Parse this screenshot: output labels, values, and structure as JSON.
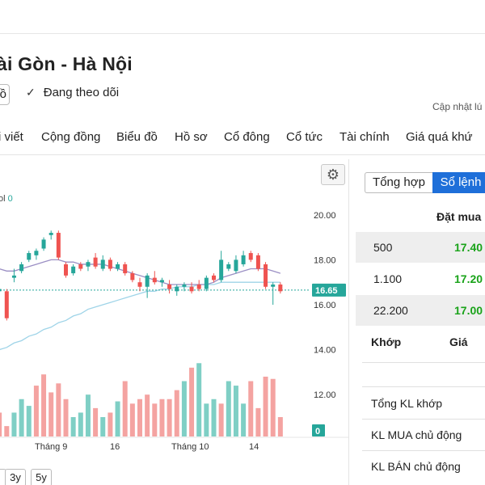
{
  "header": {
    "company_title": "ài Gòn - Hà Nội",
    "partial_button": "ồ",
    "follow_label": "Đang theo dõi",
    "update_text": "Cập nhật lú"
  },
  "nav": {
    "items": [
      "i viết",
      "Cộng đồng",
      "Biểu đồ",
      "Hồ sơ",
      "Cổ đông",
      "Cổ tức",
      "Tài chính",
      "Giá quá khứ"
    ]
  },
  "chart_panel": {
    "volume_label": "ol",
    "volume_value": "0",
    "range_buttons": [
      "3y",
      "5y"
    ],
    "range_partial": "/"
  },
  "chart_data": {
    "type": "candlestick",
    "y_ticks": [
      "20.00",
      "18.00",
      "16.00",
      "14.00",
      "12.00"
    ],
    "y_tick_values": [
      20,
      18,
      16,
      14,
      12
    ],
    "last_price_label": "16.65",
    "last_price": 16.65,
    "volume_marker_label": "0",
    "x_ticks": [
      "Tháng 9",
      "16",
      "Tháng 10",
      "14"
    ],
    "ylim": [
      11.2,
      20.6
    ],
    "colors": {
      "up": "#26a69a",
      "down": "#ef5350",
      "ma_short": "#9b8fc4",
      "ma_long": "#9fd4e8",
      "price_line": "#26a69a"
    },
    "candles": [
      {
        "o": 17.4,
        "h": 17.5,
        "l": 16.5,
        "c": 16.6
      },
      {
        "o": 16.6,
        "h": 16.8,
        "l": 16.4,
        "c": 16.7
      },
      {
        "o": 16.6,
        "h": 16.7,
        "l": 15.3,
        "c": 15.4
      },
      {
        "o": 17.2,
        "h": 17.6,
        "l": 17.0,
        "c": 17.3
      },
      {
        "o": 17.5,
        "h": 17.9,
        "l": 17.4,
        "c": 17.8
      },
      {
        "o": 18.0,
        "h": 18.4,
        "l": 17.9,
        "c": 18.3
      },
      {
        "o": 18.2,
        "h": 18.5,
        "l": 18.0,
        "c": 18.4
      },
      {
        "o": 18.5,
        "h": 19.0,
        "l": 18.4,
        "c": 18.9
      },
      {
        "o": 19.1,
        "h": 19.3,
        "l": 18.9,
        "c": 19.2
      },
      {
        "o": 19.2,
        "h": 19.3,
        "l": 18.0,
        "c": 18.1
      },
      {
        "o": 17.8,
        "h": 17.9,
        "l": 17.2,
        "c": 17.3
      },
      {
        "o": 17.4,
        "h": 17.8,
        "l": 17.3,
        "c": 17.7
      },
      {
        "o": 17.8,
        "h": 17.9,
        "l": 17.5,
        "c": 17.6
      },
      {
        "o": 17.7,
        "h": 18.0,
        "l": 17.5,
        "c": 17.9
      },
      {
        "o": 18.1,
        "h": 18.3,
        "l": 17.6,
        "c": 17.7
      },
      {
        "o": 17.6,
        "h": 18.2,
        "l": 17.5,
        "c": 18.0
      },
      {
        "o": 18.0,
        "h": 18.1,
        "l": 17.5,
        "c": 17.6
      },
      {
        "o": 17.6,
        "h": 17.9,
        "l": 17.5,
        "c": 17.8
      },
      {
        "o": 17.8,
        "h": 17.9,
        "l": 17.3,
        "c": 17.4
      },
      {
        "o": 17.4,
        "h": 17.5,
        "l": 17.0,
        "c": 17.1
      },
      {
        "o": 17.0,
        "h": 17.2,
        "l": 16.6,
        "c": 16.8
      },
      {
        "o": 16.8,
        "h": 17.4,
        "l": 16.3,
        "c": 17.3
      },
      {
        "o": 17.2,
        "h": 17.5,
        "l": 16.9,
        "c": 17.0
      },
      {
        "o": 17.0,
        "h": 17.2,
        "l": 16.8,
        "c": 17.1
      },
      {
        "o": 16.9,
        "h": 17.1,
        "l": 16.5,
        "c": 16.7
      },
      {
        "o": 16.6,
        "h": 16.9,
        "l": 16.4,
        "c": 16.8
      },
      {
        "o": 16.8,
        "h": 17.0,
        "l": 16.6,
        "c": 16.9
      },
      {
        "o": 16.8,
        "h": 17.0,
        "l": 16.5,
        "c": 16.6
      },
      {
        "o": 16.9,
        "h": 17.1,
        "l": 16.6,
        "c": 16.7
      },
      {
        "o": 16.7,
        "h": 17.3,
        "l": 16.6,
        "c": 17.2
      },
      {
        "o": 17.3,
        "h": 17.4,
        "l": 17.0,
        "c": 17.1
      },
      {
        "o": 17.1,
        "h": 18.4,
        "l": 17.0,
        "c": 18.0
      },
      {
        "o": 17.6,
        "h": 17.9,
        "l": 17.5,
        "c": 17.8
      },
      {
        "o": 17.5,
        "h": 18.2,
        "l": 17.4,
        "c": 18.0
      },
      {
        "o": 17.8,
        "h": 18.4,
        "l": 17.7,
        "c": 18.2
      },
      {
        "o": 18.3,
        "h": 18.4,
        "l": 17.9,
        "c": 18.0
      },
      {
        "o": 18.2,
        "h": 18.3,
        "l": 17.5,
        "c": 17.6
      },
      {
        "o": 17.8,
        "h": 17.9,
        "l": 16.7,
        "c": 16.8
      },
      {
        "o": 16.8,
        "h": 17.0,
        "l": 16.0,
        "c": 16.9
      },
      {
        "o": 16.9,
        "h": 17.0,
        "l": 16.5,
        "c": 16.6
      }
    ],
    "volumes": [
      {
        "v": 10.2,
        "dir": "down"
      },
      {
        "v": 11.2,
        "dir": "down"
      },
      {
        "v": 10.6,
        "dir": "down"
      },
      {
        "v": 11.2,
        "dir": "up"
      },
      {
        "v": 11.8,
        "dir": "up"
      },
      {
        "v": 11.5,
        "dir": "up"
      },
      {
        "v": 12.4,
        "dir": "down"
      },
      {
        "v": 12.9,
        "dir": "down"
      },
      {
        "v": 12.1,
        "dir": "down"
      },
      {
        "v": 12.5,
        "dir": "down"
      },
      {
        "v": 11.8,
        "dir": "down"
      },
      {
        "v": 11.0,
        "dir": "up"
      },
      {
        "v": 11.2,
        "dir": "up"
      },
      {
        "v": 12.0,
        "dir": "up"
      },
      {
        "v": 11.4,
        "dir": "down"
      },
      {
        "v": 11.0,
        "dir": "up"
      },
      {
        "v": 11.2,
        "dir": "down"
      },
      {
        "v": 11.7,
        "dir": "up"
      },
      {
        "v": 12.6,
        "dir": "down"
      },
      {
        "v": 11.6,
        "dir": "down"
      },
      {
        "v": 11.8,
        "dir": "down"
      },
      {
        "v": 12.0,
        "dir": "down"
      },
      {
        "v": 11.6,
        "dir": "down"
      },
      {
        "v": 11.8,
        "dir": "down"
      },
      {
        "v": 11.8,
        "dir": "down"
      },
      {
        "v": 12.2,
        "dir": "down"
      },
      {
        "v": 12.6,
        "dir": "up"
      },
      {
        "v": 13.2,
        "dir": "down"
      },
      {
        "v": 13.4,
        "dir": "up"
      },
      {
        "v": 11.6,
        "dir": "up"
      },
      {
        "v": 11.8,
        "dir": "up"
      },
      {
        "v": 11.6,
        "dir": "down"
      },
      {
        "v": 12.6,
        "dir": "up"
      },
      {
        "v": 12.4,
        "dir": "up"
      },
      {
        "v": 11.6,
        "dir": "up"
      },
      {
        "v": 12.6,
        "dir": "down"
      },
      {
        "v": 11.4,
        "dir": "down"
      },
      {
        "v": 12.8,
        "dir": "down"
      },
      {
        "v": 12.7,
        "dir": "down"
      },
      {
        "v": 11.0,
        "dir": "down"
      }
    ],
    "ma_short": [
      17.7,
      17.6,
      17.5,
      17.5,
      17.6,
      17.7,
      17.8,
      17.9,
      18.0,
      18.0,
      17.9,
      17.9,
      17.8,
      17.8,
      17.8,
      17.8,
      17.7,
      17.6,
      17.5,
      17.4,
      17.3,
      17.2,
      17.1,
      17.0,
      16.9,
      16.9,
      16.9,
      16.9,
      16.9,
      16.9,
      17.0,
      17.2,
      17.3,
      17.4,
      17.5,
      17.6,
      17.6,
      17.6,
      17.5,
      17.4
    ],
    "ma_long": [
      13.9,
      14.0,
      14.1,
      14.3,
      14.4,
      14.6,
      14.7,
      14.9,
      15.0,
      15.2,
      15.3,
      15.5,
      15.6,
      15.8,
      15.9,
      16.0,
      16.1,
      16.2,
      16.3,
      16.4,
      16.5,
      16.6,
      16.6,
      16.7,
      16.7,
      16.8,
      16.8,
      16.8,
      16.9,
      16.9,
      16.9,
      17.0,
      17.0,
      17.0,
      17.0,
      17.0,
      17.0,
      17.0,
      17.0,
      17.0
    ]
  },
  "order_book": {
    "tabs": [
      "Tổng hợp",
      "Sổ lệnh"
    ],
    "bid_header": "Đặt mua",
    "rows": [
      {
        "qty": "500",
        "price": "17.40"
      },
      {
        "qty": "1.100",
        "price": "17.20"
      },
      {
        "qty": "22.200",
        "price": "17.00"
      }
    ],
    "match_col": "Khớp",
    "price_col": "Giá",
    "stats": [
      "Tổng KL khớp",
      "KL MUA chủ động",
      "KL BÁN chủ động"
    ]
  }
}
